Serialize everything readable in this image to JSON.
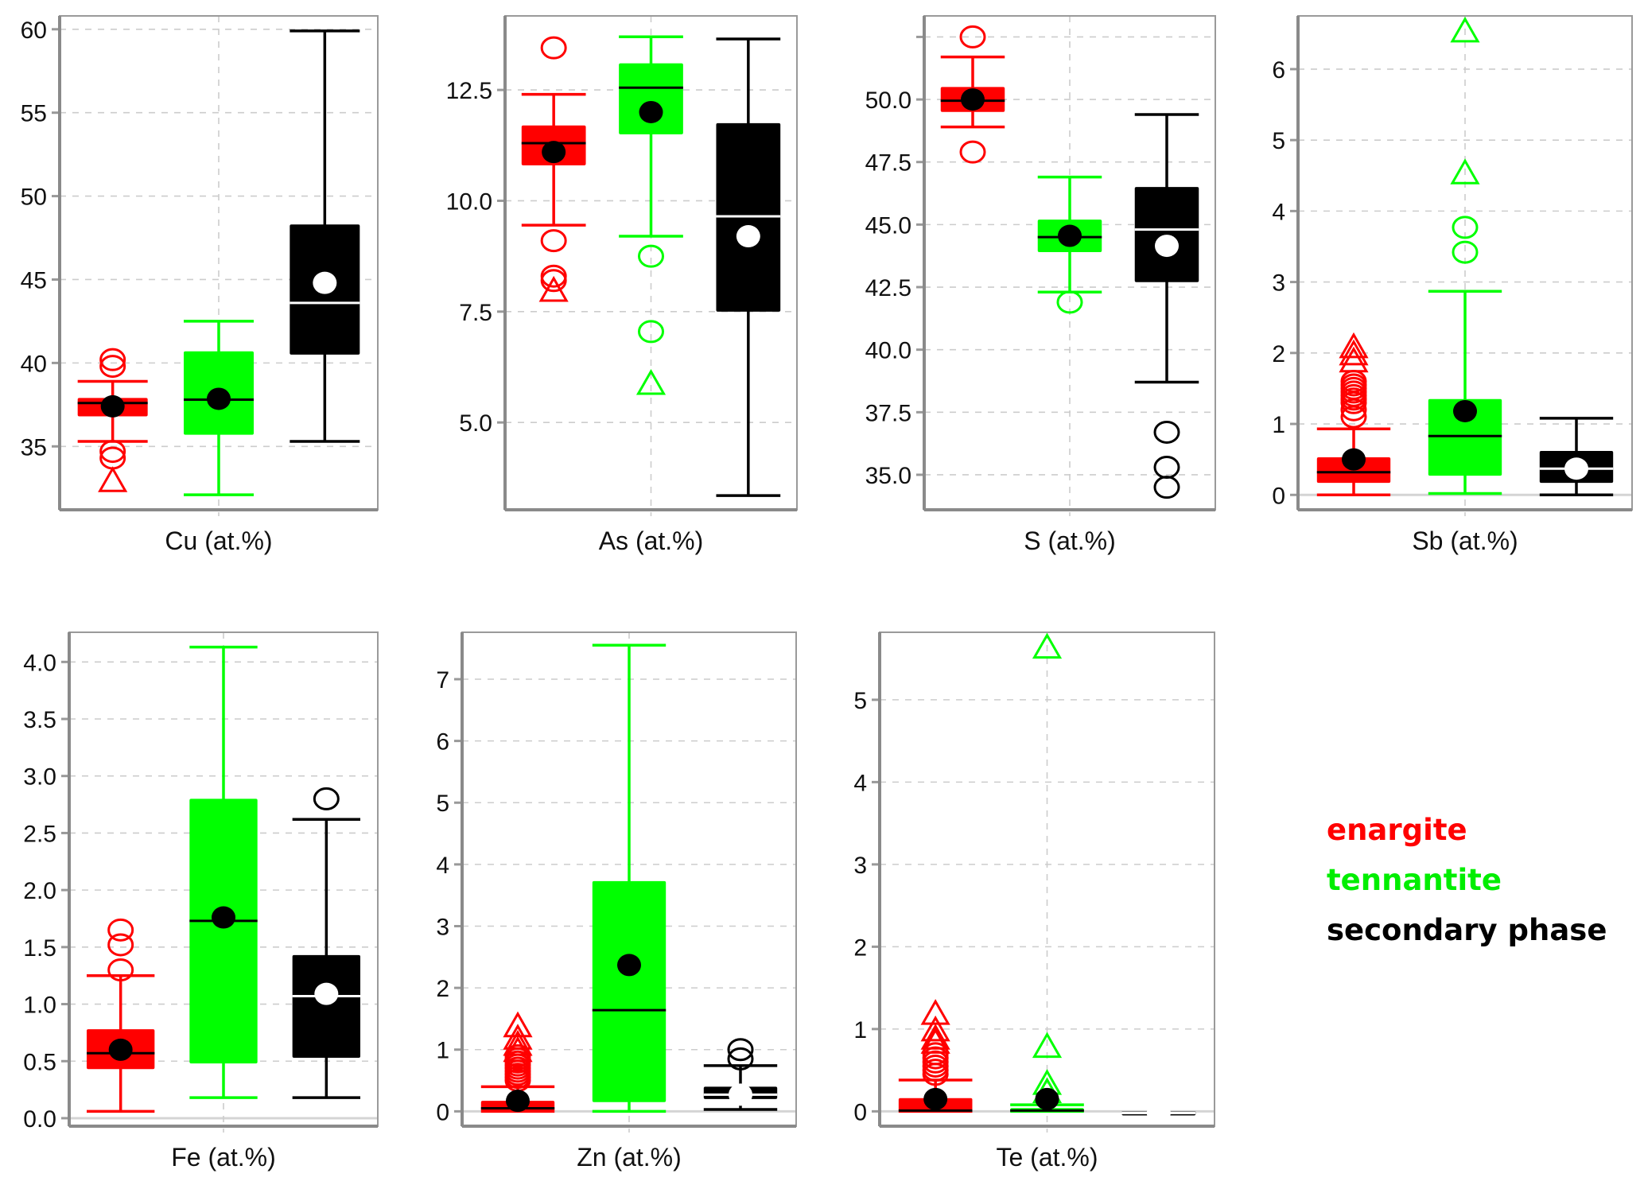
{
  "chart_data": {
    "type": "boxplot",
    "title": "",
    "series": [
      {
        "name": "enargite",
        "color": "#ff0000",
        "mean_marker_color": "#000000",
        "median_color": "#000000"
      },
      {
        "name": "tennantite",
        "color": "#00ff00",
        "mean_marker_color": "#000000",
        "median_color": "#000000"
      },
      {
        "name": "secondary phase",
        "color": "#000000",
        "mean_marker_color": "#ffffff",
        "median_color": "#ffffff"
      }
    ],
    "legend": {
      "placement": "bottom-right",
      "entries": [
        "enargite",
        "tennantite",
        "secondary phase"
      ]
    },
    "grid": true,
    "panels": [
      {
        "xlabel": "Cu (at.%)",
        "ylim": [
          31.2,
          60.8
        ],
        "ticks": [
          35,
          40,
          45,
          50,
          55,
          60
        ],
        "tick_labels": [
          "35",
          "40",
          "45",
          "50",
          "55",
          "60"
        ],
        "boxes": [
          {
            "series": "enargite",
            "whisker_low": 35.3,
            "q1": 36.8,
            "median": 37.6,
            "q3": 37.9,
            "whisker_high": 38.9,
            "mean": 37.4,
            "outliers_circle": [
              40.2,
              39.8,
              34.7,
              34.3
            ],
            "outliers_triangle": [
              33.0
            ]
          },
          {
            "series": "tennantite",
            "whisker_low": 32.1,
            "q1": 35.7,
            "median": 37.8,
            "q3": 40.7,
            "whisker_high": 42.5,
            "mean": 37.85,
            "outliers_circle": [],
            "outliers_triangle": []
          },
          {
            "series": "secondary phase",
            "whisker_low": 35.3,
            "q1": 40.5,
            "median": 43.6,
            "q3": 48.3,
            "whisker_high": 59.9,
            "mean": 44.8,
            "outliers_circle": [],
            "outliers_triangle": []
          }
        ]
      },
      {
        "xlabel": "As (at.%)",
        "ylim": [
          3.03,
          14.17
        ],
        "ticks": [
          5.0,
          7.5,
          10.0,
          12.5
        ],
        "tick_labels": [
          "5.0",
          "7.5",
          "10.0",
          "12.5"
        ],
        "boxes": [
          {
            "series": "enargite",
            "whisker_low": 9.45,
            "q1": 10.8,
            "median": 11.3,
            "q3": 11.7,
            "whisker_high": 12.4,
            "mean": 11.1,
            "outliers_circle": [
              13.45,
              9.1,
              8.3,
              8.2
            ],
            "outliers_triangle": [
              8.0
            ]
          },
          {
            "series": "tennantite",
            "whisker_low": 9.2,
            "q1": 11.5,
            "median": 12.55,
            "q3": 13.1,
            "whisker_high": 13.7,
            "mean": 12.0,
            "outliers_circle": [
              8.75,
              7.05
            ],
            "outliers_triangle": [
              5.9
            ]
          },
          {
            "series": "secondary phase",
            "whisker_low": 3.35,
            "q1": 7.5,
            "median": 9.65,
            "q3": 11.75,
            "whisker_high": 13.65,
            "mean": 9.2,
            "outliers_circle": [],
            "outliers_triangle": []
          }
        ]
      },
      {
        "xlabel": "S (at.%)",
        "ylim": [
          33.6,
          53.34
        ],
        "ticks": [
          35.0,
          37.5,
          40.0,
          42.5,
          45.0,
          47.5,
          50.0,
          52.5
        ],
        "tick_labels": [
          "35.0",
          "37.5",
          "40.0",
          "42.5",
          "45.0",
          "47.5",
          "50.0",
          ""
        ],
        "boxes": [
          {
            "series": "enargite",
            "whisker_low": 48.9,
            "q1": 49.5,
            "median": 49.95,
            "q3": 50.5,
            "whisker_high": 51.7,
            "mean": 50.0,
            "outliers_circle": [
              52.5,
              47.9
            ],
            "outliers_triangle": []
          },
          {
            "series": "tennantite",
            "whisker_low": 42.3,
            "q1": 43.9,
            "median": 44.5,
            "q3": 45.2,
            "whisker_high": 46.9,
            "mean": 44.55,
            "outliers_circle": [
              41.9
            ],
            "outliers_triangle": []
          },
          {
            "series": "secondary phase",
            "whisker_low": 38.7,
            "q1": 42.7,
            "median": 44.8,
            "q3": 46.5,
            "whisker_high": 49.4,
            "mean": 44.15,
            "outliers_circle": [
              36.7,
              35.3,
              34.5
            ],
            "outliers_triangle": []
          }
        ]
      },
      {
        "xlabel": "Sb (at.%)",
        "ylim": [
          -0.21,
          6.75
        ],
        "ticks": [
          0,
          1,
          2,
          3,
          4,
          5,
          6
        ],
        "tick_labels": [
          "0",
          "1",
          "2",
          "3",
          "4",
          "5",
          "6"
        ],
        "boxes": [
          {
            "series": "enargite",
            "whisker_low": 0.0,
            "q1": 0.17,
            "median": 0.32,
            "q3": 0.53,
            "whisker_high": 0.93,
            "mean": 0.5,
            "outliers_circle": [
              1.1,
              1.2,
              1.3,
              1.35,
              1.4,
              1.45,
              1.5,
              1.55,
              1.6
            ],
            "outliers_triangle": [
              1.9,
              2.0,
              2.1
            ]
          },
          {
            "series": "tennantite",
            "whisker_low": 0.02,
            "q1": 0.27,
            "median": 0.83,
            "q3": 1.35,
            "whisker_high": 2.87,
            "mean": 1.18,
            "outliers_circle": [
              3.42,
              3.77
            ],
            "outliers_triangle": [
              4.55,
              6.55
            ]
          },
          {
            "series": "secondary phase",
            "whisker_low": 0.0,
            "q1": 0.17,
            "median": 0.37,
            "q3": 0.62,
            "whisker_high": 1.08,
            "mean": 0.37,
            "outliers_circle": [],
            "outliers_triangle": []
          }
        ]
      },
      {
        "xlabel": "Fe (at.%)",
        "ylim": [
          -0.07,
          4.26
        ],
        "ticks": [
          0.0,
          0.5,
          1.0,
          1.5,
          2.0,
          2.5,
          3.0,
          3.5,
          4.0
        ],
        "tick_labels": [
          "0.0",
          "0.5",
          "1.0",
          "1.5",
          "2.0",
          "2.5",
          "3.0",
          "3.5",
          "4.0"
        ],
        "boxes": [
          {
            "series": "enargite",
            "whisker_low": 0.06,
            "q1": 0.43,
            "median": 0.57,
            "q3": 0.78,
            "whisker_high": 1.25,
            "mean": 0.6,
            "outliers_circle": [
              1.3,
              1.52,
              1.65
            ],
            "outliers_triangle": []
          },
          {
            "series": "tennantite",
            "whisker_low": 0.18,
            "q1": 0.48,
            "median": 1.73,
            "q3": 2.8,
            "whisker_high": 4.13,
            "mean": 1.76,
            "outliers_circle": [],
            "outliers_triangle": []
          },
          {
            "series": "secondary phase",
            "whisker_low": 0.18,
            "q1": 0.53,
            "median": 1.07,
            "q3": 1.43,
            "whisker_high": 2.62,
            "mean": 1.09,
            "outliers_circle": [
              2.8
            ],
            "outliers_triangle": []
          }
        ]
      },
      {
        "xlabel": "Zn (at.%)",
        "ylim": [
          -0.24,
          7.76
        ],
        "ticks": [
          0,
          1,
          2,
          3,
          4,
          5,
          6,
          7
        ],
        "tick_labels": [
          "0",
          "1",
          "2",
          "3",
          "4",
          "5",
          "6",
          "7"
        ],
        "boxes": [
          {
            "series": "enargite",
            "whisker_low": 0.0,
            "q1": 0.0,
            "median": 0.05,
            "q3": 0.17,
            "whisker_high": 0.4,
            "mean": 0.17,
            "outliers_circle": [
              0.5,
              0.55,
              0.6,
              0.65,
              0.7,
              0.75,
              0.8,
              0.85,
              0.9
            ],
            "outliers_triangle": [
              1.0,
              1.1,
              1.2,
              1.4
            ]
          },
          {
            "series": "tennantite",
            "whisker_low": 0.0,
            "q1": 0.15,
            "median": 1.64,
            "q3": 3.73,
            "whisker_high": 7.55,
            "mean": 2.37,
            "outliers_circle": [],
            "outliers_triangle": []
          },
          {
            "series": "secondary phase",
            "whisker_low": 0.03,
            "q1": 0.2,
            "median": 0.27,
            "q3": 0.4,
            "whisker_high": 0.74,
            "mean": 0.27,
            "outliers_circle": [
              0.85,
              1.0
            ],
            "outliers_triangle": []
          }
        ]
      },
      {
        "xlabel": "Te (at.%)",
        "ylim": [
          -0.18,
          5.82
        ],
        "ticks": [
          0,
          1,
          2,
          3,
          4,
          5
        ],
        "tick_labels": [
          "0",
          "1",
          "2",
          "3",
          "4",
          "5"
        ],
        "boxes": [
          {
            "series": "enargite",
            "whisker_low": 0.0,
            "q1": 0.0,
            "median": 0.01,
            "q3": 0.16,
            "whisker_high": 0.38,
            "mean": 0.15,
            "outliers_circle": [
              0.45,
              0.5,
              0.55,
              0.6,
              0.65,
              0.7
            ],
            "outliers_triangle": [
              0.85,
              0.9,
              1.0,
              1.2
            ]
          },
          {
            "series": "tennantite",
            "whisker_low": 0.0,
            "q1": 0.0,
            "median": 0.01,
            "q3": 0.04,
            "whisker_high": 0.08,
            "mean": 0.15,
            "outliers_circle": [],
            "outliers_triangle": [
              0.25,
              0.35,
              0.8,
              5.65
            ]
          },
          {
            "series": "secondary phase",
            "whisker_low": -0.02,
            "q1": -0.02,
            "median": -0.02,
            "q3": -0.02,
            "whisker_high": -0.02,
            "mean": -0.02,
            "outliers_circle": [],
            "outliers_triangle": []
          }
        ]
      }
    ]
  }
}
